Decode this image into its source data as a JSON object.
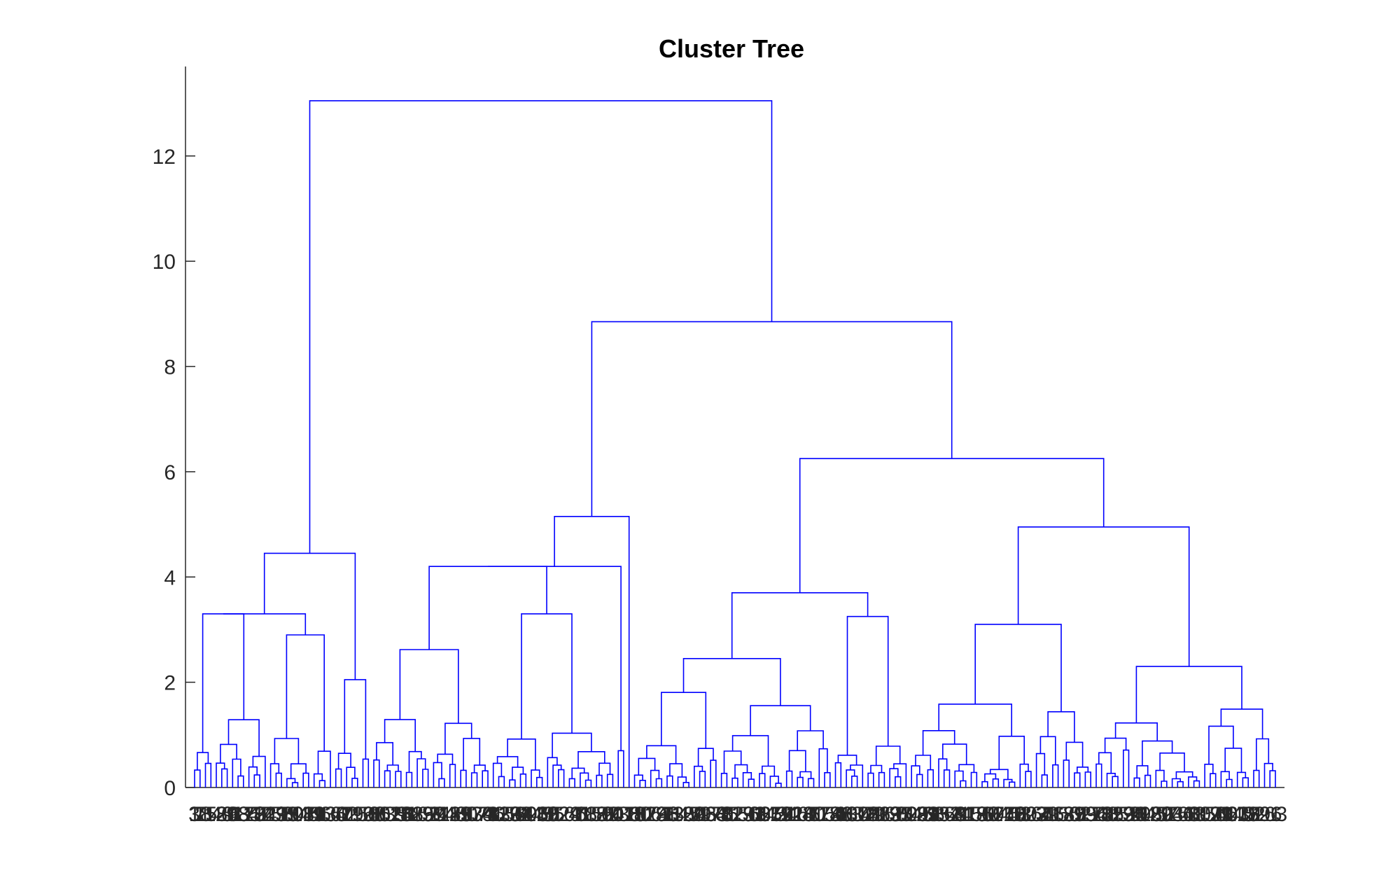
{
  "chart_data": {
    "type": "dendrogram",
    "title": "Cluster Tree",
    "xlabel": "",
    "ylabel": "",
    "ylim": [
      0,
      13.7
    ],
    "yticks": [
      0,
      2,
      4,
      6,
      8,
      10,
      12
    ],
    "ytick_labels": [
      "0",
      "2",
      "4",
      "6",
      "8",
      "10",
      "12"
    ],
    "grid": false,
    "line_color": "#0000FF",
    "axis_color": "#262626",
    "major_merge_heights": [
      13.05,
      8.85,
      6.25,
      5.15,
      4.95,
      4.45,
      4.2,
      3.7,
      3.3,
      3.1,
      2.62,
      2.3
    ],
    "leaf_count": 200,
    "leaf_labels_visible": "overlapping numeric leaf indices (unreadable)",
    "leaf_labels_sample": [
      "1",
      "7",
      "2",
      "3",
      "8",
      "5",
      "9",
      "4",
      "6",
      "0"
    ]
  }
}
